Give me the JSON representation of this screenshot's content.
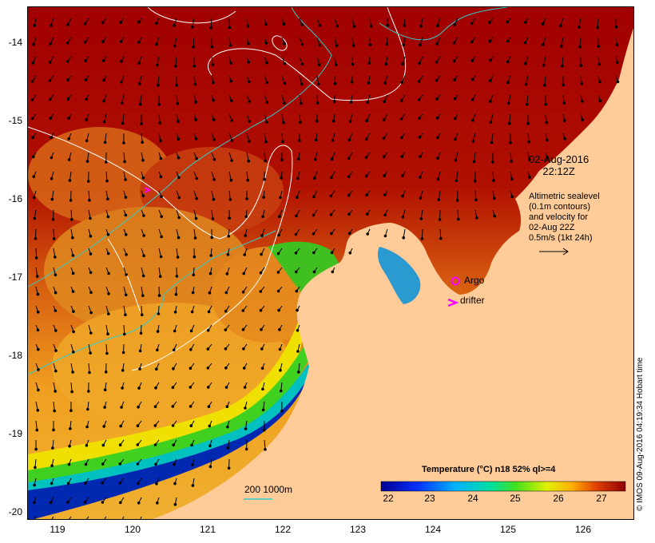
{
  "map": {
    "y_axis_labels": [
      "-14",
      "-15",
      "-16",
      "-17",
      "-18",
      "-19",
      "-20"
    ],
    "x_axis_labels": [
      "119",
      "120",
      "121",
      "122",
      "123",
      "124",
      "125",
      "126"
    ],
    "lon_range": [
      118.65,
      126.72
    ],
    "lat_range": [
      -13.55,
      -20.1
    ],
    "colors": {
      "ocean_warm": "#a00000",
      "land": "#ffcc99",
      "contour": "#ffffff",
      "isobath": "#33cccc",
      "marker": "#ff00ff"
    }
  },
  "legend": {
    "date_line1": "02-Aug-2016",
    "date_line2": "22:12Z",
    "info_lines": [
      "Altimetric sealevel",
      "(0.1m contours)",
      "and velocity for",
      "02-Aug 22Z",
      "0.5m/s (1kt 24h)"
    ],
    "argo_label": "Argo",
    "drifter_label": "drifter",
    "isobath_label": "200  1000m"
  },
  "colorbar": {
    "title": "Temperature (°C) n18 52% ql>=4",
    "ticks": [
      "22",
      "23",
      "24",
      "25",
      "26",
      "27"
    ],
    "range": [
      21.7,
      27.6
    ]
  },
  "credit": "© IMOS 09-Aug-2016 04:19:34 Hobart time"
}
